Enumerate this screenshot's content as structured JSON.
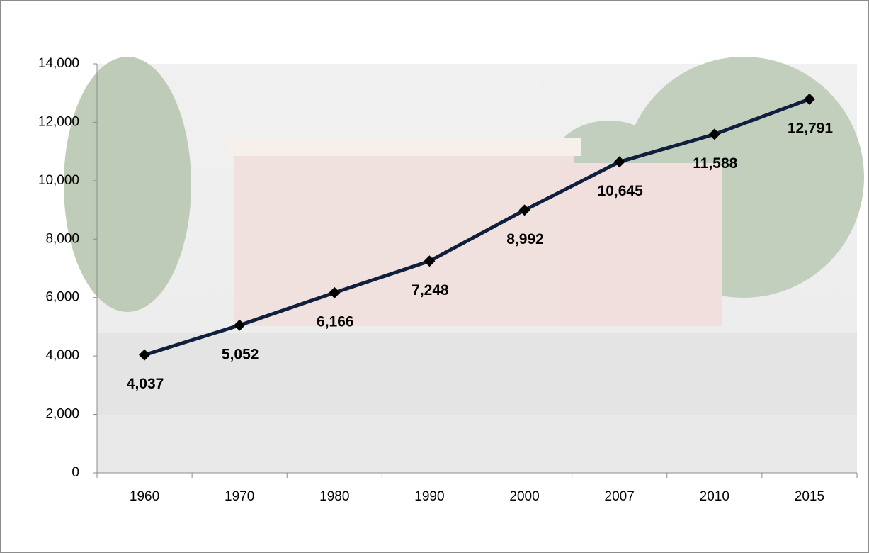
{
  "chart_data": {
    "type": "line",
    "categories": [
      "1960",
      "1970",
      "1980",
      "1990",
      "2000",
      "2007",
      "2010",
      "2015"
    ],
    "series": [
      {
        "color": "#0f1f3d",
        "values": [
          4037,
          5052,
          6166,
          7248,
          8992,
          10645,
          11588,
          12791
        ],
        "value_labels": [
          "4,037",
          "5,052",
          "6,166",
          "7,248",
          "8,992",
          "10,645",
          "11,588",
          "12,791"
        ]
      }
    ],
    "ylim": [
      0,
      14000
    ],
    "yticks": [
      0,
      {
        "value": 2000,
        "label": "2,000"
      },
      {
        "value": 4000,
        "label": "4,000"
      },
      {
        "value": 6000,
        "label": "6,000"
      },
      {
        "value": 8000,
        "label": "8,000"
      },
      {
        "value": 10000,
        "label": "10,000"
      },
      {
        "value": 12000,
        "label": "12,000"
      },
      {
        "value": 14000,
        "label": "14,000"
      }
    ],
    "marker": "diamond",
    "marker_color": "#000000",
    "grid": false
  }
}
